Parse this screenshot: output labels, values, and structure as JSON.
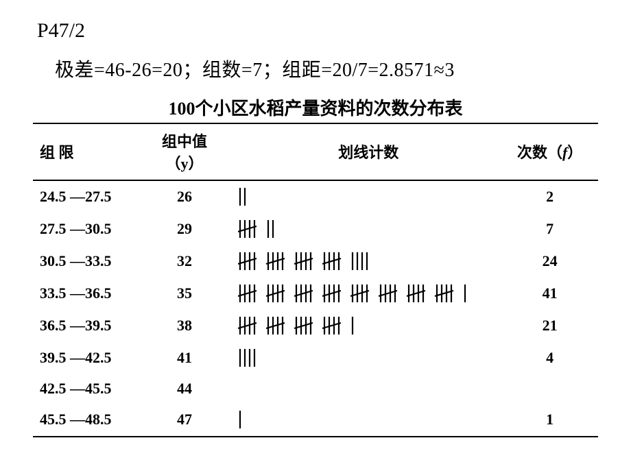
{
  "page_ref": "P47/2",
  "calc_line": "极差=46-26=20；组数=7；组距=20/7=2.8571≈3",
  "table_title": "100个小区水稻产量资料的次数分布表",
  "headers": {
    "range": "组  限",
    "mid_prefix": "组中值（",
    "mid_var": "y",
    "mid_suffix": "）",
    "tally": "划线计数",
    "freq_prefix": "次数（",
    "freq_var": "f",
    "freq_suffix": "）"
  },
  "tally_style": {
    "stroke": "#000000",
    "stroke_width": 2.2,
    "mark_height": 26,
    "mark_spacing": 7,
    "group_gap": 13,
    "cross_rise": 4
  },
  "rows": [
    {
      "range": "24.5 —27.5",
      "mid": "26",
      "count": 2,
      "freq": "2"
    },
    {
      "range": "27.5 —30.5",
      "mid": "29",
      "count": 7,
      "freq": "7"
    },
    {
      "range": "30.5 —33.5",
      "mid": "32",
      "count": 24,
      "freq": "24"
    },
    {
      "range": "33.5 —36.5",
      "mid": "35",
      "count": 41,
      "freq": "41"
    },
    {
      "range": "36.5 —39.5",
      "mid": "38",
      "count": 21,
      "freq": "21"
    },
    {
      "range": "39.5 —42.5",
      "mid": "41",
      "count": 4,
      "freq": "4"
    },
    {
      "range": "42.5 —45.5",
      "mid": "44",
      "count": 0,
      "freq": ""
    },
    {
      "range": "45.5 —48.5",
      "mid": "47",
      "count": 1,
      "freq": "1"
    }
  ]
}
